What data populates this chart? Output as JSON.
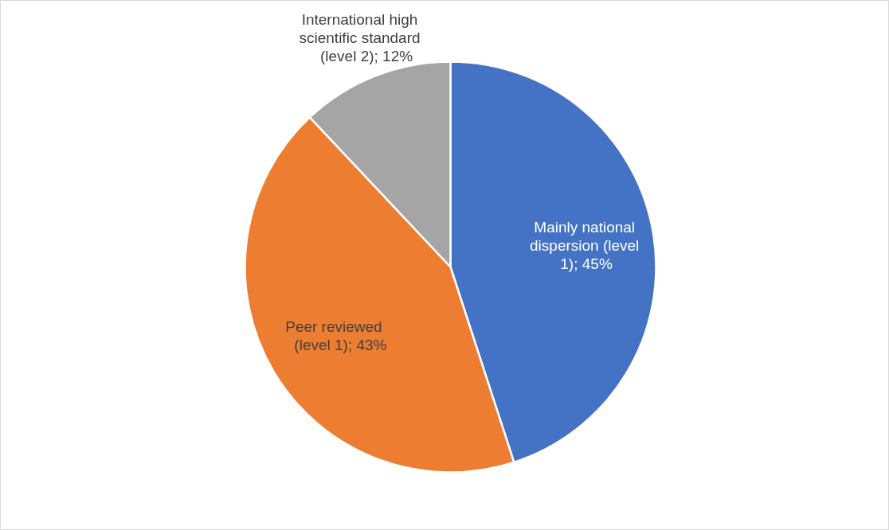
{
  "chart_data": {
    "type": "pie",
    "categories": [
      "Mainly national dispersion (level 1)",
      "Peer reviewed (level 1)",
      "International high scientific standard (level 2)"
    ],
    "values": [
      45,
      43,
      12
    ],
    "value_labels": [
      "; 45%",
      "; 43%",
      "; 12%"
    ],
    "colors": [
      "#4472c4",
      "#ed7d31",
      "#a5a5a5"
    ],
    "data_labels": true
  }
}
